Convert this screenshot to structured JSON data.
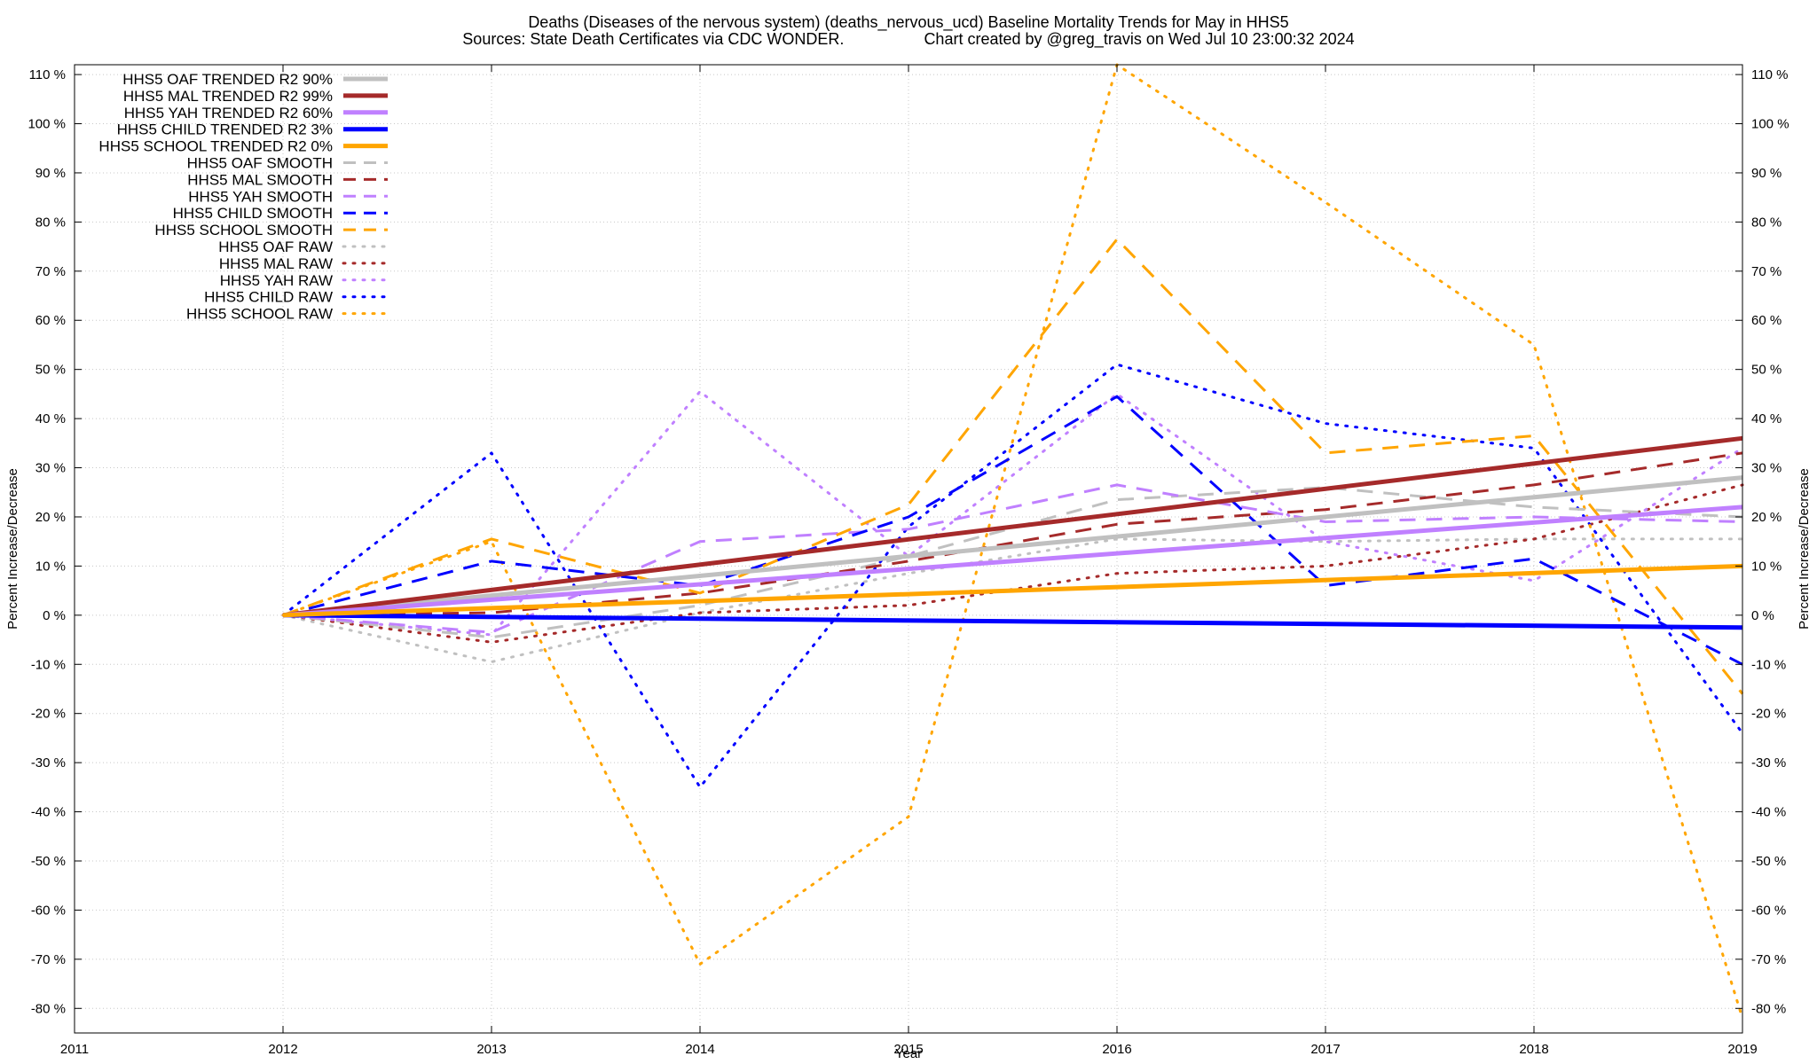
{
  "title": {
    "line1": "Deaths (Diseases of the nervous system) (deaths_nervous_ucd)  Baseline Mortality Trends for May in HHS5",
    "sources": "Sources: State Death Certificates via CDC WONDER.",
    "credit": "Chart created by @greg_travis on Wed Jul 10 23:00:32 2024"
  },
  "chart_data": {
    "type": "line",
    "xlabel": "Year",
    "ylabel": "Percent Increase/Decrease",
    "ylabel_right": "Percent Increase/Decrease",
    "xlim": [
      2011,
      2019
    ],
    "ylim": [
      -85,
      112
    ],
    "x_ticks": [
      2011,
      2012,
      2013,
      2014,
      2015,
      2016,
      2017,
      2018,
      2019
    ],
    "x_tick_labels": [
      "2011",
      "2012",
      "2013",
      "2014",
      "2015",
      "2016",
      "2017",
      "2018",
      "2019"
    ],
    "y_ticks": [
      110,
      100,
      90,
      80,
      70,
      60,
      50,
      40,
      30,
      20,
      10,
      0,
      -10,
      -20,
      -30,
      -40,
      -50,
      -60,
      -70,
      -80
    ],
    "y_tick_labels": [
      "110 %",
      "100 %",
      "90 %",
      "80 %",
      "70 %",
      "60 %",
      "50 %",
      "40 %",
      "30 %",
      "20 %",
      "10 %",
      "0 %",
      "-10 %",
      "-20 %",
      "-30 %",
      "-40 %",
      "-50 %",
      "-60 %",
      "-70 %",
      "-80 %"
    ],
    "grid": true,
    "legend_position": "top-left",
    "series": [
      {
        "name": "HHS5 OAF TRENDED R2  90%",
        "color": "#c0c0c0",
        "style": "solid",
        "x": [
          2012,
          2019
        ],
        "values": [
          0,
          28
        ]
      },
      {
        "name": "HHS5 MAL TRENDED R2  99%",
        "color": "#a52a2a",
        "style": "solid",
        "x": [
          2012,
          2019
        ],
        "values": [
          0,
          36
        ]
      },
      {
        "name": "HHS5 YAH TRENDED R2  60%",
        "color": "#c080ff",
        "style": "solid",
        "x": [
          2012,
          2019
        ],
        "values": [
          0,
          22
        ]
      },
      {
        "name": "HHS5 CHILD TRENDED R2   3%",
        "color": "#0000ff",
        "style": "solid",
        "x": [
          2012,
          2019
        ],
        "values": [
          0,
          -2.5
        ]
      },
      {
        "name": "HHS5 SCHOOL TRENDED R2   0%",
        "color": "#ffa500",
        "style": "solid",
        "x": [
          2012,
          2019
        ],
        "values": [
          0,
          10
        ]
      },
      {
        "name": "HHS5 OAF SMOOTH",
        "color": "#c0c0c0",
        "style": "dashed",
        "x": [
          2012,
          2013,
          2014,
          2015,
          2016,
          2017,
          2018,
          2019
        ],
        "values": [
          0,
          -4.5,
          2,
          12,
          23.5,
          26,
          22,
          20
        ]
      },
      {
        "name": "HHS5 MAL SMOOTH",
        "color": "#a52a2a",
        "style": "dashed",
        "x": [
          2012,
          2013,
          2014,
          2015,
          2016,
          2017,
          2018,
          2019
        ],
        "values": [
          0,
          0.5,
          4.5,
          11,
          18.5,
          21.5,
          26.5,
          33
        ]
      },
      {
        "name": "HHS5 YAH SMOOTH",
        "color": "#c080ff",
        "style": "dashed",
        "x": [
          2012,
          2013,
          2014,
          2015,
          2016,
          2017,
          2018,
          2019
        ],
        "values": [
          0,
          -3.5,
          15,
          17.5,
          26.5,
          19,
          20,
          19
        ]
      },
      {
        "name": "HHS5 CHILD SMOOTH",
        "color": "#0000ff",
        "style": "dashed",
        "x": [
          2012,
          2013,
          2014,
          2015,
          2016,
          2017,
          2018,
          2019
        ],
        "values": [
          0,
          11,
          6,
          20,
          44.5,
          6,
          11.5,
          -10
        ]
      },
      {
        "name": "HHS5 SCHOOL SMOOTH",
        "color": "#ffa500",
        "style": "dashed",
        "x": [
          2012,
          2013,
          2014,
          2015,
          2016,
          2017,
          2018,
          2019
        ],
        "values": [
          0,
          15.5,
          4.5,
          22.5,
          76.5,
          33,
          36.5,
          -16
        ]
      },
      {
        "name": "HHS5 OAF RAW",
        "color": "#c0c0c0",
        "style": "dotted",
        "x": [
          2012,
          2013,
          2014,
          2015,
          2016,
          2017,
          2018,
          2019
        ],
        "values": [
          0,
          -9.5,
          0.5,
          8.5,
          15.5,
          15,
          15.5,
          15.5
        ]
      },
      {
        "name": "HHS5 MAL RAW",
        "color": "#a52a2a",
        "style": "dotted",
        "x": [
          2012,
          2013,
          2014,
          2015,
          2016,
          2017,
          2018,
          2019
        ],
        "values": [
          0,
          -5.5,
          0.5,
          2,
          8.5,
          10,
          15.5,
          26.5
        ]
      },
      {
        "name": "HHS5 YAH RAW",
        "color": "#c080ff",
        "style": "dotted",
        "x": [
          2012,
          2013,
          2014,
          2015,
          2016,
          2017,
          2018,
          2019
        ],
        "values": [
          0,
          -4,
          45.5,
          12,
          45,
          15,
          7,
          34
        ]
      },
      {
        "name": "HHS5 CHILD RAW",
        "color": "#0000ff",
        "style": "dotted",
        "x": [
          2012,
          2013,
          2014,
          2015,
          2016,
          2017,
          2018,
          2019
        ],
        "values": [
          0,
          33,
          -35,
          18,
          51,
          39,
          34,
          -24
        ]
      },
      {
        "name": "HHS5 SCHOOL RAW",
        "color": "#ffa500",
        "style": "dotted",
        "x": [
          2012,
          2013,
          2014,
          2015,
          2016,
          2017,
          2018,
          2019
        ],
        "values": [
          0,
          15,
          -71,
          -41,
          112,
          84,
          55,
          -82
        ]
      }
    ]
  }
}
